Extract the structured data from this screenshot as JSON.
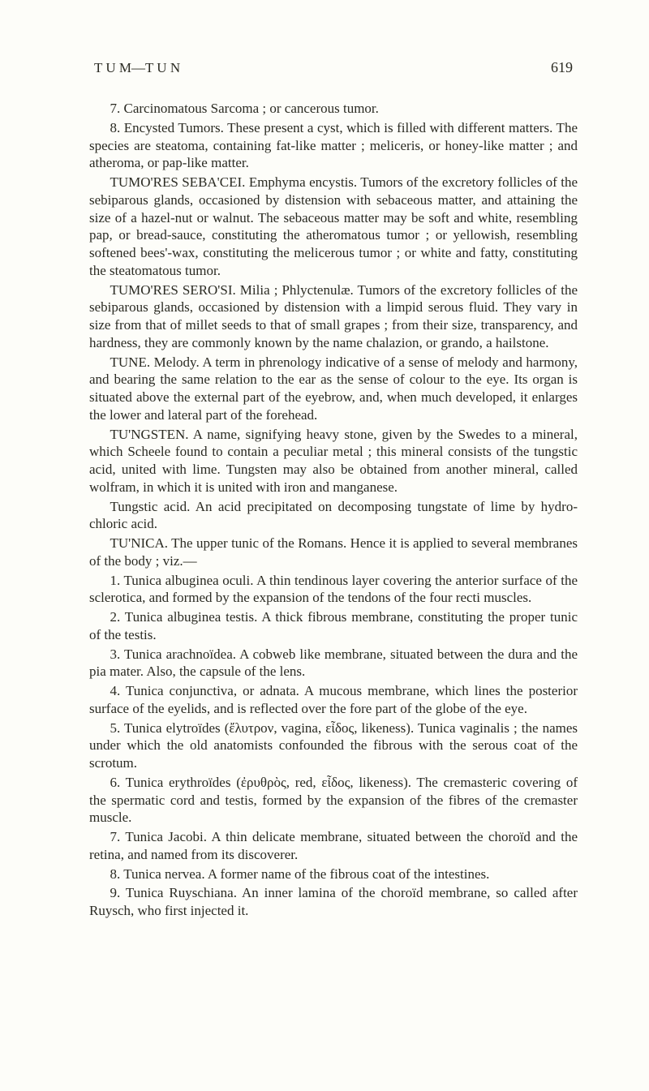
{
  "page": {
    "running_head": "T U M—T U N",
    "number": "619"
  },
  "para": {
    "p1": "7. Carcinomatous Sarcoma ; or cancerous tumor.",
    "p2": "8. Encysted Tumors. These present a cyst, which is filled with different matters. The species are steatoma, containing fat-like matter ; meliceris, or honey-like matter ; and atheroma, or pap-like matter.",
    "p3": "TUMO'RES SEBA'CEI. Emphyma encystis. Tumors of the excretory follicles of the sebiparous glands, occasioned by distension with sebaceous matter, and attaining the size of a hazel-nut or walnut. The sebaceous matter may be soft and white, resembling pap, or bread-sauce, constituting the atheromatous tumor ; or yellowish, resembling softened bees'-wax, constituting the melicerous tumor ; or white and fatty, constituting the steatomatous tumor.",
    "p4": "TUMO'RES SERO'SI. Milia ; Phlyctenulæ. Tumors of the excretory follicles of the sebiparous glands, occasioned by distension with a limpid serous fluid. They vary in size from that of millet seeds to that of small grapes ; from their size, transparency, and hardness, they are commonly known by the name chalazion, or grando, a hailstone.",
    "p5": "TUNE. Melody. A term in phrenology indicative of a sense of melody and harmony, and bearing the same relation to the ear as the sense of colour to the eye. Its organ is situated above the external part of the eyebrow, and, when much developed, it enlarges the lower and lateral part of the forehead.",
    "p6": "TU'NGSTEN. A name, signifying heavy stone, given by the Swedes to a mineral, which Scheele found to contain a peculiar metal ; this mineral consists of the tungstic acid, united with lime. Tungsten may also be obtained from another mineral, called wolfram, in which it is united with iron and manganese.",
    "p7": "Tungstic acid. An acid precipitated on decomposing tungstate of lime by hydro-chloric acid.",
    "p8": "TU'NICA. The upper tunic of the Romans. Hence it is applied to several membranes of the body ; viz.—",
    "p9": "1. Tunica albuginea oculi. A thin tendinous layer covering the anterior surface of the sclerotica, and formed by the expansion of the tendons of the four recti muscles.",
    "p10": "2. Tunica albuginea testis. A thick fibrous membrane, constituting the proper tunic of the testis.",
    "p11": "3. Tunica arachnoïdea. A cobweb like membrane, situated between the dura and the pia mater. Also, the capsule of the lens.",
    "p12": "4. Tunica conjunctiva, or adnata. A mucous membrane, which lines the posterior surface of the eyelids, and is reflected over the fore part of the globe of the eye.",
    "p13": "5. Tunica elytroïdes (ἔλυτρον, vagina, εἶδος, likeness). Tunica vaginalis ; the names under which the old anatomists confounded the fibrous with the serous coat of the scrotum.",
    "p14": "6. Tunica erythroïdes (ἐρυθρὸς, red, εἶδος, likeness). The cremasteric covering of the spermatic cord and testis, formed by the expansion of the fibres of the cremaster muscle.",
    "p15": "7. Tunica Jacobi. A thin delicate membrane, situated between the choroïd and the retina, and named from its discoverer.",
    "p16": "8. Tunica nervea. A former name of the fibrous coat of the intestines.",
    "p17": "9. Tunica Ruyschiana. An inner lamina of the choroïd membrane, so called after Ruysch, who first injected it."
  }
}
